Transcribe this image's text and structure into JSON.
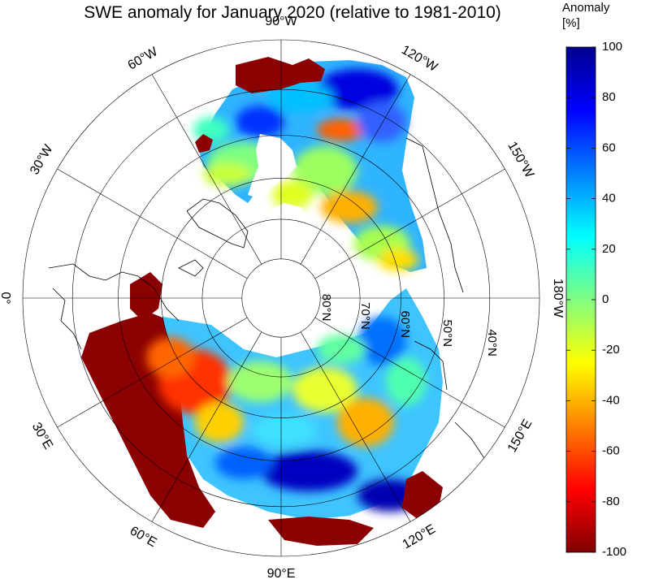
{
  "title": "SWE anomaly for January 2020 (relative to 1981-2010)",
  "colorbar": {
    "label_line1": "Anomaly",
    "label_line2": "[%]",
    "ticks": [
      100,
      80,
      60,
      40,
      20,
      0,
      -20,
      -40,
      -60,
      -80,
      -100
    ],
    "range": [
      -100,
      100
    ],
    "colormap": "jet",
    "colors": [
      "#800000",
      "#ff0000",
      "#ff8000",
      "#ffff00",
      "#80ff80",
      "#00ffff",
      "#0080ff",
      "#0000ff",
      "#00008f"
    ]
  },
  "map": {
    "projection": "north-polar-stereographic",
    "center": "north-pole",
    "longitude_labels": [
      {
        "text": "90°W",
        "lon": -90
      },
      {
        "text": "120°W",
        "lon": -120
      },
      {
        "text": "150°W",
        "lon": -150
      },
      {
        "text": "180°W",
        "lon": 180
      },
      {
        "text": "150°E",
        "lon": 150
      },
      {
        "text": "120°E",
        "lon": 120
      },
      {
        "text": "90°E",
        "lon": 90
      },
      {
        "text": "60°E",
        "lon": 60
      },
      {
        "text": "30°E",
        "lon": 30
      },
      {
        "text": "0°",
        "lon": 0
      },
      {
        "text": "30°W",
        "lon": -30
      },
      {
        "text": "60°W",
        "lon": -60
      }
    ],
    "latitude_labels": [
      "80°N",
      "70°N",
      "60°N",
      "50°N",
      "40°N"
    ],
    "latitudes": [
      80,
      70,
      60,
      50,
      40,
      30
    ],
    "meridian_step_deg": 30,
    "grid": true,
    "land_outline": true
  }
}
